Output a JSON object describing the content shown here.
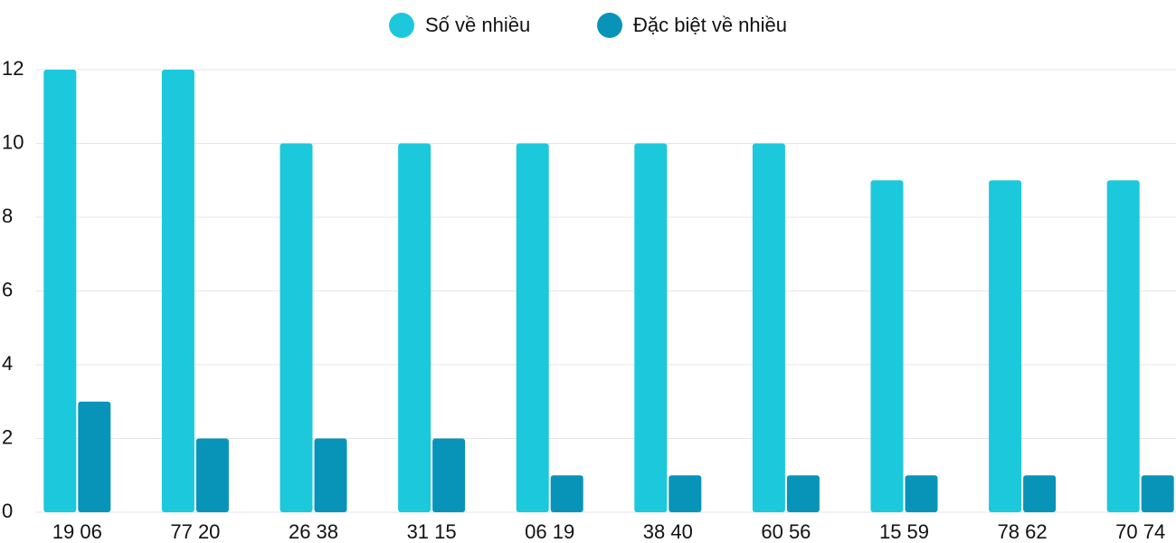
{
  "chart_data": {
    "type": "bar",
    "categories": [
      "19 06",
      "77 20",
      "26 38",
      "31 15",
      "06 19",
      "38 40",
      "60 56",
      "15 59",
      "78 62",
      "70 74"
    ],
    "series": [
      {
        "name": "Số về nhiều",
        "color": "#1cc8dc",
        "values": [
          12,
          12,
          10,
          10,
          10,
          10,
          10,
          9,
          9,
          9
        ]
      },
      {
        "name": "Đặc biệt về nhiều",
        "color": "#0894b8",
        "values": [
          3,
          2,
          2,
          2,
          1,
          1,
          1,
          1,
          1,
          1
        ]
      }
    ],
    "ylim": [
      0,
      12
    ],
    "yticks": [
      0,
      2,
      4,
      6,
      8,
      10,
      12
    ],
    "grid": true,
    "legend": "top"
  }
}
